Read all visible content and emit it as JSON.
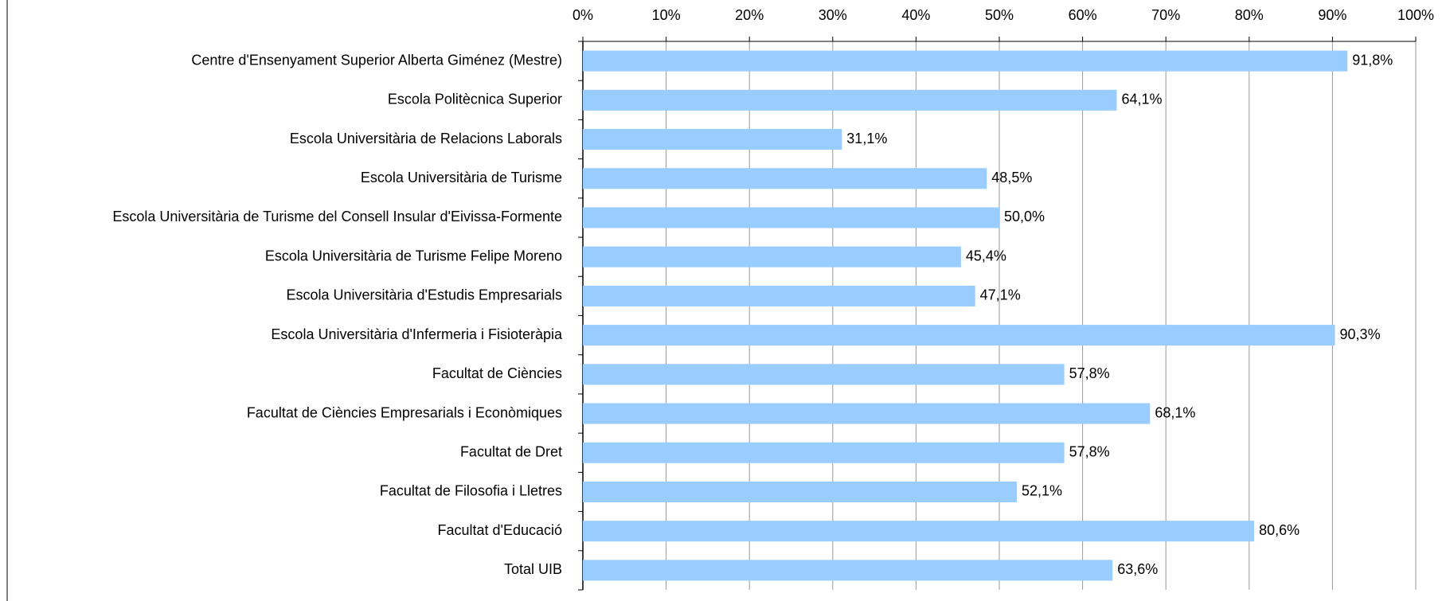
{
  "chart_data": {
    "type": "hbar",
    "categories": [
      "Centre d'Ensenyament Superior Alberta Giménez (Mestre)",
      "Escola Politècnica Superior",
      "Escola Universitària de Relacions Laborals",
      "Escola Universitària de Turisme",
      "Escola Universitària de Turisme del Consell Insular d'Eivissa-Formente",
      "Escola Universitària de Turisme Felipe Moreno",
      "Escola Universitària d'Estudis Empresarials",
      "Escola Universitària d'Infermeria i Fisioteràpia",
      "Facultat de Ciències",
      "Facultat de Ciències Empresarials i Econòmiques",
      "Facultat de Dret",
      "Facultat de Filosofia i Lletres",
      "Facultat d'Educació",
      "Total UIB"
    ],
    "values": [
      91.8,
      64.1,
      31.1,
      48.5,
      50.0,
      45.4,
      47.1,
      90.3,
      57.8,
      68.1,
      57.8,
      52.1,
      80.6,
      63.6
    ],
    "value_labels": [
      "91,8%",
      "64,1%",
      "31,1%",
      "48,5%",
      "50,0%",
      "45,4%",
      "47,1%",
      "90,3%",
      "57,8%",
      "68,1%",
      "57,8%",
      "52,1%",
      "80,6%",
      "63,6%"
    ],
    "color": "#99ccff",
    "xlim": [
      0,
      100
    ],
    "xticks": [
      {
        "value": 0,
        "label": "0%"
      },
      {
        "value": 10,
        "label": "10%"
      },
      {
        "value": 20,
        "label": "20%"
      },
      {
        "value": 30,
        "label": "30%"
      },
      {
        "value": 40,
        "label": "40%"
      },
      {
        "value": 50,
        "label": "50%"
      },
      {
        "value": 60,
        "label": "60%"
      },
      {
        "value": 70,
        "label": "70%"
      },
      {
        "value": 80,
        "label": "80%"
      },
      {
        "value": 90,
        "label": "90%"
      },
      {
        "value": 100,
        "label": "100%"
      }
    ],
    "grid": true
  }
}
